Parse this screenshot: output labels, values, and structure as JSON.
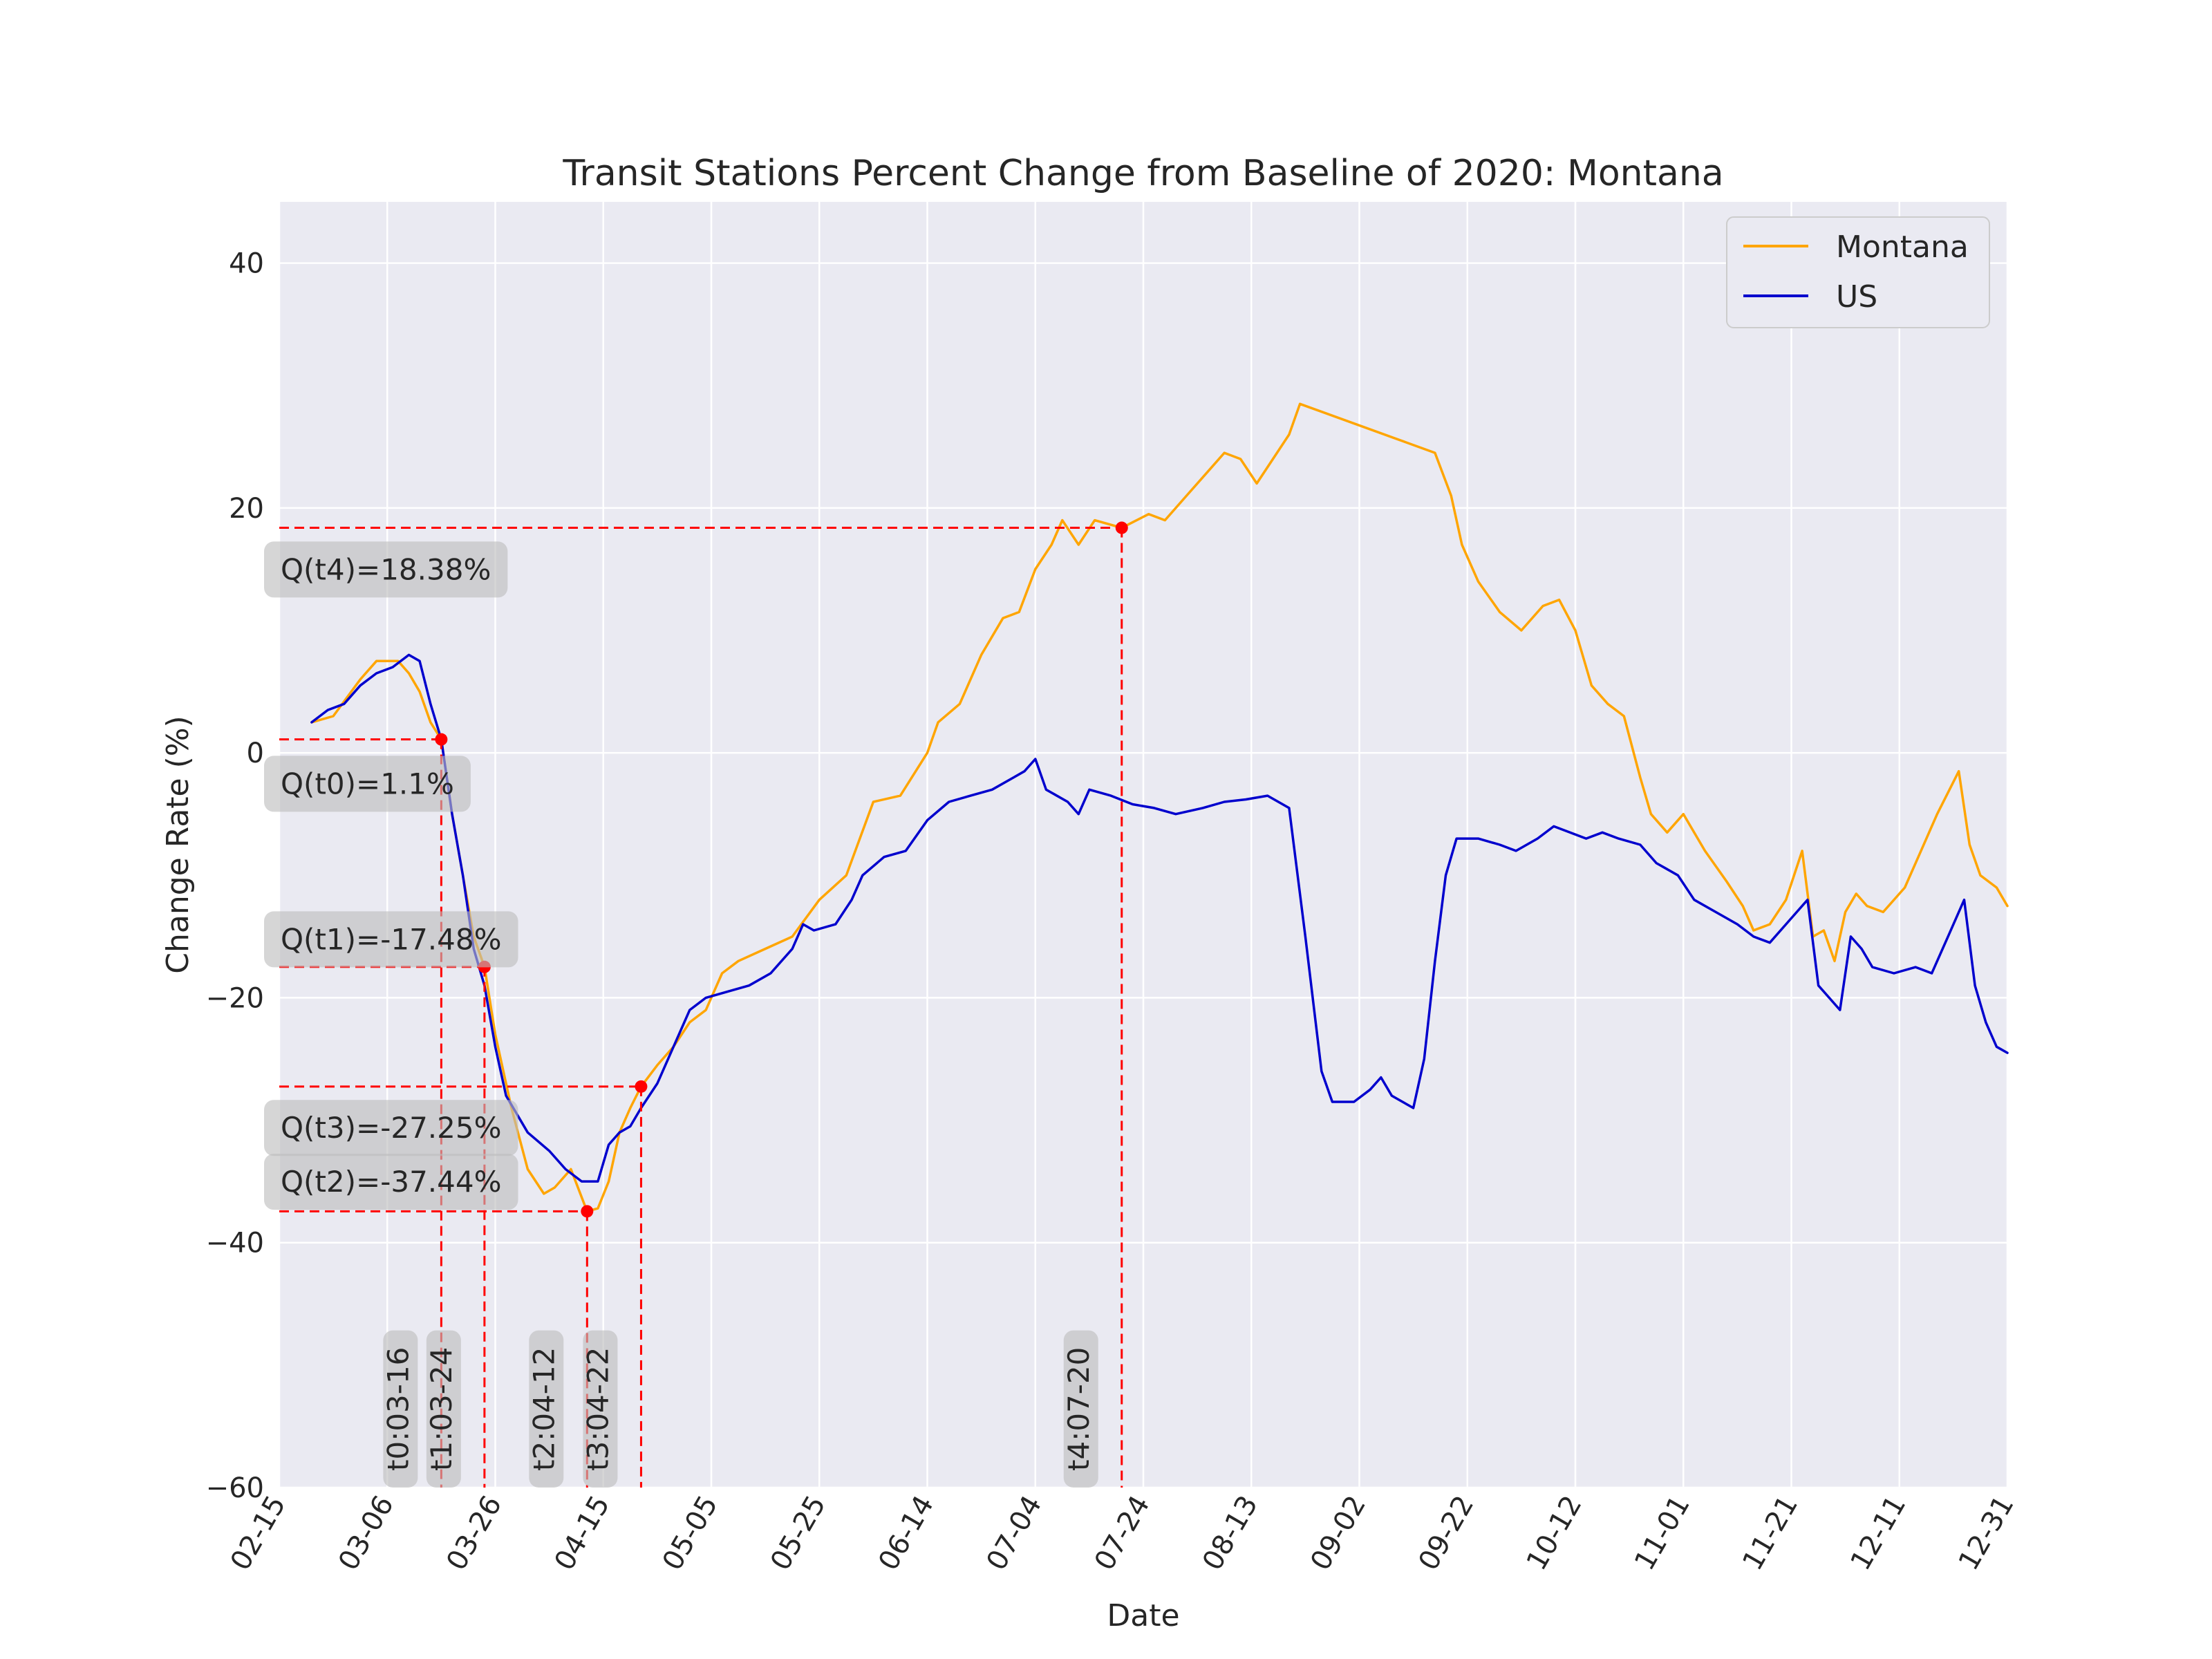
{
  "chart_data": {
    "type": "line",
    "title": "Transit Stations Percent Change from Baseline of 2020: Montana",
    "xlabel": "Date",
    "ylabel": "Change Rate (%)",
    "x_range": [
      "02-15",
      "12-31"
    ],
    "ylim": [
      -60,
      45
    ],
    "grid": true,
    "legend_position": "top-right",
    "x_ticks": [
      "02-15",
      "03-06",
      "03-26",
      "04-15",
      "05-05",
      "05-25",
      "06-14",
      "07-04",
      "07-24",
      "08-13",
      "09-02",
      "09-22",
      "10-12",
      "11-01",
      "11-21",
      "12-11",
      "12-31"
    ],
    "y_ticks": [
      40,
      20,
      0,
      -20,
      -40,
      -60
    ],
    "y_tick_labels": [
      "40",
      "20",
      "0",
      "−20",
      "−40",
      "−60"
    ],
    "colors": {
      "montana": "#ffa500",
      "us": "#0000cd",
      "marker": "#ff0000",
      "background": "#eaeaf2"
    },
    "series": [
      {
        "name": "Montana",
        "color": "#ffa500",
        "points": [
          [
            "02-21",
            2.5
          ],
          [
            "02-25",
            3
          ],
          [
            "03-01",
            6
          ],
          [
            "03-04",
            7.5
          ],
          [
            "03-08",
            7.5
          ],
          [
            "03-10",
            6.5
          ],
          [
            "03-12",
            5
          ],
          [
            "03-14",
            2.5
          ],
          [
            "03-16",
            1.1
          ],
          [
            "03-18",
            -5
          ],
          [
            "03-20",
            -10
          ],
          [
            "03-22",
            -15
          ],
          [
            "03-24",
            -17.48
          ],
          [
            "03-26",
            -23
          ],
          [
            "03-29",
            -29
          ],
          [
            "04-01",
            -34
          ],
          [
            "04-04",
            -36
          ],
          [
            "04-06",
            -35.5
          ],
          [
            "04-09",
            -34
          ],
          [
            "04-12",
            -37.44
          ],
          [
            "04-14",
            -37.2
          ],
          [
            "04-16",
            -35
          ],
          [
            "04-18",
            -31
          ],
          [
            "04-20",
            -29
          ],
          [
            "04-22",
            -27.25
          ],
          [
            "04-25",
            -25.5
          ],
          [
            "04-28",
            -24
          ],
          [
            "05-01",
            -22
          ],
          [
            "05-04",
            -21
          ],
          [
            "05-07",
            -18
          ],
          [
            "05-10",
            -17
          ],
          [
            "05-15",
            -16
          ],
          [
            "05-20",
            -15
          ],
          [
            "05-25",
            -12
          ],
          [
            "05-30",
            -10
          ],
          [
            "06-04",
            -4
          ],
          [
            "06-09",
            -3.5
          ],
          [
            "06-14",
            0
          ],
          [
            "06-16",
            2.5
          ],
          [
            "06-20",
            4
          ],
          [
            "06-24",
            8
          ],
          [
            "06-28",
            11
          ],
          [
            "07-01",
            11.5
          ],
          [
            "07-04",
            15
          ],
          [
            "07-07",
            17
          ],
          [
            "07-09",
            19
          ],
          [
            "07-12",
            17
          ],
          [
            "07-15",
            19
          ],
          [
            "07-20",
            18.38
          ],
          [
            "07-25",
            19.5
          ],
          [
            "07-28",
            19
          ],
          [
            "08-01",
            21
          ],
          [
            "08-05",
            23
          ],
          [
            "08-08",
            24.5
          ],
          [
            "08-11",
            24
          ],
          [
            "08-14",
            22
          ],
          [
            "08-17",
            24
          ],
          [
            "08-20",
            26
          ],
          [
            "08-22",
            28.5
          ],
          [
            "09-16",
            24.5
          ],
          [
            "09-19",
            21
          ],
          [
            "09-21",
            17
          ],
          [
            "09-24",
            14
          ],
          [
            "09-28",
            11.5
          ],
          [
            "10-02",
            10
          ],
          [
            "10-06",
            12
          ],
          [
            "10-09",
            12.5
          ],
          [
            "10-12",
            10
          ],
          [
            "10-15",
            5.5
          ],
          [
            "10-18",
            4
          ],
          [
            "10-21",
            3
          ],
          [
            "10-24",
            -2
          ],
          [
            "10-26",
            -5
          ],
          [
            "10-29",
            -6.5
          ],
          [
            "11-01",
            -5
          ],
          [
            "11-05",
            -8
          ],
          [
            "11-09",
            -10.5
          ],
          [
            "11-12",
            -12.5
          ],
          [
            "11-14",
            -14.5
          ],
          [
            "11-17",
            -14
          ],
          [
            "11-20",
            -12
          ],
          [
            "11-23",
            -8
          ],
          [
            "11-25",
            -15
          ],
          [
            "11-27",
            -14.5
          ],
          [
            "11-29",
            -17
          ],
          [
            "12-01",
            -13
          ],
          [
            "12-03",
            -11.5
          ],
          [
            "12-05",
            -12.5
          ],
          [
            "12-08",
            -13
          ],
          [
            "12-12",
            -11
          ],
          [
            "12-15",
            -8
          ],
          [
            "12-18",
            -5
          ],
          [
            "12-22",
            -1.5
          ],
          [
            "12-24",
            -7.5
          ],
          [
            "12-26",
            -10
          ],
          [
            "12-29",
            -11
          ],
          [
            "12-31",
            -12.5
          ]
        ]
      },
      {
        "name": "US",
        "color": "#0000cd",
        "points": [
          [
            "02-21",
            2.5
          ],
          [
            "02-24",
            3.5
          ],
          [
            "02-27",
            4
          ],
          [
            "03-01",
            5.5
          ],
          [
            "03-04",
            6.5
          ],
          [
            "03-07",
            7
          ],
          [
            "03-10",
            8
          ],
          [
            "03-12",
            7.5
          ],
          [
            "03-14",
            4
          ],
          [
            "03-16",
            1.1
          ],
          [
            "03-18",
            -5
          ],
          [
            "03-20",
            -10
          ],
          [
            "03-22",
            -16
          ],
          [
            "03-24",
            -19
          ],
          [
            "03-26",
            -24
          ],
          [
            "03-28",
            -28
          ],
          [
            "04-01",
            -31
          ],
          [
            "04-05",
            -32.5
          ],
          [
            "04-08",
            -34
          ],
          [
            "04-11",
            -35
          ],
          [
            "04-14",
            -35
          ],
          [
            "04-16",
            -32
          ],
          [
            "04-18",
            -31
          ],
          [
            "04-20",
            -30.5
          ],
          [
            "04-22",
            -29
          ],
          [
            "04-25",
            -27
          ],
          [
            "04-28",
            -24
          ],
          [
            "05-01",
            -21
          ],
          [
            "05-04",
            -20
          ],
          [
            "05-08",
            -19.5
          ],
          [
            "05-12",
            -19
          ],
          [
            "05-16",
            -18
          ],
          [
            "05-20",
            -16
          ],
          [
            "05-22",
            -14
          ],
          [
            "05-24",
            -14.5
          ],
          [
            "05-28",
            -14
          ],
          [
            "05-31",
            -12
          ],
          [
            "06-02",
            -10
          ],
          [
            "06-06",
            -8.5
          ],
          [
            "06-10",
            -8
          ],
          [
            "06-14",
            -5.5
          ],
          [
            "06-18",
            -4
          ],
          [
            "06-22",
            -3.5
          ],
          [
            "06-26",
            -3
          ],
          [
            "06-30",
            -2
          ],
          [
            "07-02",
            -1.5
          ],
          [
            "07-04",
            -0.5
          ],
          [
            "07-06",
            -3
          ],
          [
            "07-10",
            -4
          ],
          [
            "07-12",
            -5
          ],
          [
            "07-14",
            -3
          ],
          [
            "07-18",
            -3.5
          ],
          [
            "07-22",
            -4.2
          ],
          [
            "07-26",
            -4.5
          ],
          [
            "07-30",
            -5
          ],
          [
            "08-04",
            -4.5
          ],
          [
            "08-08",
            -4
          ],
          [
            "08-12",
            -3.8
          ],
          [
            "08-16",
            -3.5
          ],
          [
            "08-20",
            -4.5
          ],
          [
            "08-23",
            -15
          ],
          [
            "08-26",
            -26
          ],
          [
            "08-28",
            -28.5
          ],
          [
            "09-01",
            -28.5
          ],
          [
            "09-04",
            -27.5
          ],
          [
            "09-06",
            -26.5
          ],
          [
            "09-08",
            -28
          ],
          [
            "09-10",
            -28.5
          ],
          [
            "09-12",
            -29
          ],
          [
            "09-14",
            -25
          ],
          [
            "09-16",
            -17
          ],
          [
            "09-18",
            -10
          ],
          [
            "09-20",
            -7
          ],
          [
            "09-24",
            -7
          ],
          [
            "09-28",
            -7.5
          ],
          [
            "10-01",
            -8
          ],
          [
            "10-05",
            -7
          ],
          [
            "10-08",
            -6
          ],
          [
            "10-11",
            -6.5
          ],
          [
            "10-14",
            -7
          ],
          [
            "10-17",
            -6.5
          ],
          [
            "10-20",
            -7
          ],
          [
            "10-24",
            -7.5
          ],
          [
            "10-27",
            -9
          ],
          [
            "10-31",
            -10
          ],
          [
            "11-03",
            -12
          ],
          [
            "11-07",
            -13
          ],
          [
            "11-11",
            -14
          ],
          [
            "11-14",
            -15
          ],
          [
            "11-17",
            -15.5
          ],
          [
            "11-20",
            -14
          ],
          [
            "11-22",
            -13
          ],
          [
            "11-24",
            -12
          ],
          [
            "11-26",
            -19
          ],
          [
            "11-28",
            -20
          ],
          [
            "11-30",
            -21
          ],
          [
            "12-02",
            -15
          ],
          [
            "12-04",
            -16
          ],
          [
            "12-06",
            -17.5
          ],
          [
            "12-10",
            -18
          ],
          [
            "12-14",
            -17.5
          ],
          [
            "12-17",
            -18
          ],
          [
            "12-20",
            -15
          ],
          [
            "12-23",
            -12
          ],
          [
            "12-25",
            -19
          ],
          [
            "12-27",
            -22
          ],
          [
            "12-29",
            -24
          ],
          [
            "12-31",
            -24.5
          ]
        ]
      }
    ],
    "annotations": [
      {
        "id": "t0",
        "date": "03-16",
        "value": 1.1,
        "date_label": "t0:03-16",
        "value_label": "Q(t0)=1.1%",
        "value_label_y": -2.5
      },
      {
        "id": "t1",
        "date": "03-24",
        "value": -17.48,
        "date_label": "t1:03-24",
        "value_label": "Q(t1)=-17.48%",
        "value_label_y": -15.2
      },
      {
        "id": "t2",
        "date": "04-12",
        "value": -37.44,
        "date_label": "t2:04-12",
        "value_label": "Q(t2)=-37.44%",
        "value_label_y": -35.0
      },
      {
        "id": "t3",
        "date": "04-22",
        "value": -27.25,
        "date_label": "t3:04-22",
        "value_label": "Q(t3)=-27.25%",
        "value_label_y": -30.6
      },
      {
        "id": "t4",
        "date": "07-20",
        "value": 18.38,
        "date_label": "t4:07-20",
        "value_label": "Q(t4)=18.38%",
        "value_label_y": 15.0
      }
    ]
  }
}
